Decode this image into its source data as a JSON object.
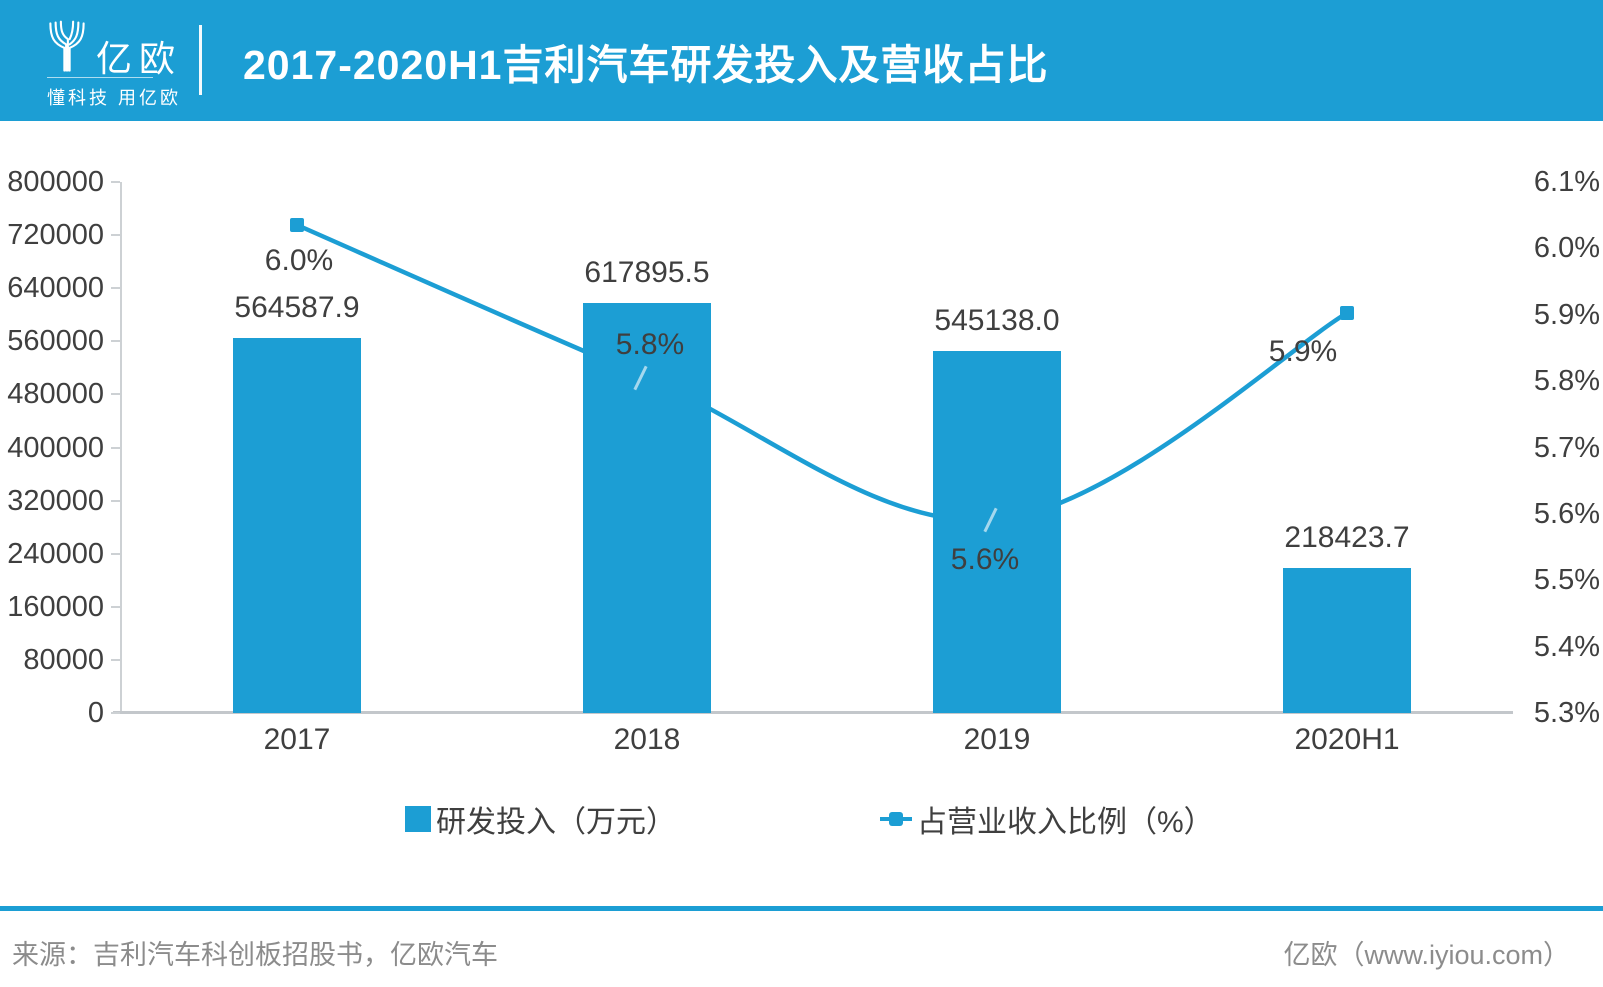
{
  "header": {
    "logo": {
      "name": "亿欧",
      "tagline": "懂科技 用亿欧"
    },
    "title": "2017-2020H1吉利汽车研发投入及营收占比"
  },
  "chart_data": {
    "type": "bar",
    "subtype": "combo-bar-line",
    "title": "2017-2020H1吉利汽车研发投入及营收占比",
    "categories": [
      "2017",
      "2018",
      "2019",
      "2020H1"
    ],
    "series": [
      {
        "name": "研发投入（万元）",
        "type": "bar",
        "axis": "left",
        "values": [
          564587.9,
          617895.5,
          545138.0,
          218423.7
        ],
        "labels": [
          "564587.9",
          "617895.5",
          "545138.0",
          "218423.7"
        ]
      },
      {
        "name": "占营业收入比例（%）",
        "type": "line",
        "axis": "right",
        "values": [
          6.0,
          5.8,
          5.6,
          5.9
        ],
        "labels": [
          "6.0%",
          "5.8%",
          "5.6%",
          "5.9%"
        ]
      }
    ],
    "left_axis": {
      "min": 0,
      "max": 800000,
      "step": 80000,
      "ticks": [
        "800000",
        "720000",
        "640000",
        "560000",
        "480000",
        "400000",
        "320000",
        "240000",
        "160000",
        "80000",
        "0"
      ]
    },
    "right_axis": {
      "min": 5.3,
      "max": 6.1,
      "step": 0.1,
      "ticks": [
        "6.1%",
        "6.0%",
        "5.9%",
        "5.8%",
        "5.7%",
        "5.6%",
        "5.5%",
        "5.4%",
        "5.3%"
      ]
    },
    "grid": "off",
    "legend_position": "bottom",
    "colors": {
      "primary": "#1C9ED4",
      "label_text": "#3F3F3F",
      "axis_line": "#CDD1D4"
    }
  },
  "footer": {
    "source": "来源：吉利汽车科创板招股书，亿欧汽车",
    "credit": "亿欧（www.iyiou.com）"
  }
}
